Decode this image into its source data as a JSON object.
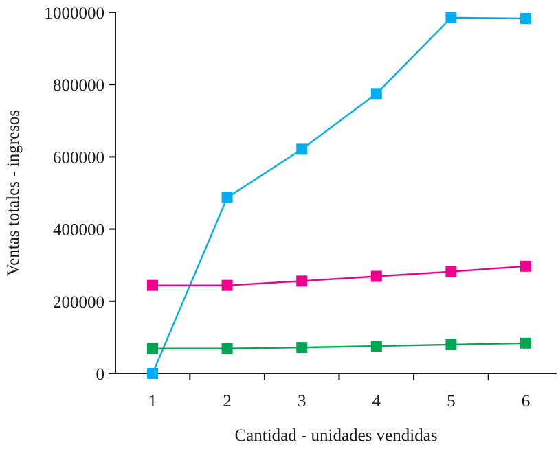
{
  "chart_data": {
    "type": "line",
    "title": "",
    "xlabel": "Cantidad - unidades vendidas",
    "ylabel": "Ventas totales - ingresos",
    "x": [
      1,
      2,
      3,
      4,
      5,
      6
    ],
    "x_tick_labels": [
      "1",
      "2",
      "3",
      "4",
      "5",
      "6"
    ],
    "ylim": [
      0,
      1000000
    ],
    "y_ticks": [
      0,
      200000,
      400000,
      600000,
      800000,
      1000000
    ],
    "y_tick_labels": [
      "0",
      "200000",
      "400000",
      "600000",
      "800000",
      "1000000"
    ],
    "grid": false,
    "marker": "square",
    "series": [
      {
        "color": "#00aeef",
        "values": [
          0,
          487000,
          621000,
          775000,
          985000,
          983000
        ]
      },
      {
        "color": "#ec008c",
        "values": [
          244000,
          244000,
          256000,
          269000,
          282000,
          297000
        ]
      },
      {
        "color": "#00a651",
        "values": [
          69000,
          69000,
          72000,
          76000,
          80000,
          84000
        ]
      }
    ]
  }
}
